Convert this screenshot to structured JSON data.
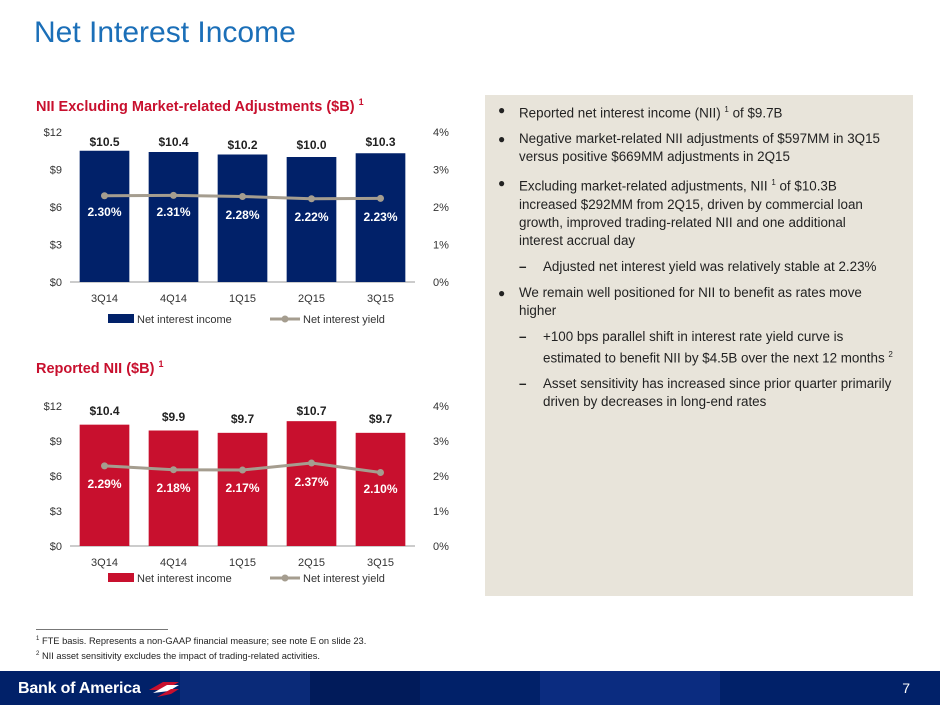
{
  "page": {
    "title": "Net Interest Income",
    "page_number": "7",
    "colors": {
      "title_blue": "#1b6fb8",
      "navy": "#012169",
      "red": "#c8102e",
      "yield_gray": "#a59d8f",
      "panel": "#e8e4da"
    }
  },
  "chart_data": [
    {
      "type": "bar",
      "title": "NII Excluding Market-related Adjustments ($B)",
      "title_sup": "1",
      "categories": [
        "3Q14",
        "4Q14",
        "1Q15",
        "2Q15",
        "3Q15"
      ],
      "series": [
        {
          "name": "Net interest income",
          "axis": "left",
          "color": "#012169",
          "values": [
            10.5,
            10.4,
            10.2,
            10.0,
            10.3
          ],
          "labels": [
            "$10.5",
            "$10.4",
            "$10.2",
            "$10.0",
            "$10.3"
          ]
        },
        {
          "name": "Net interest yield",
          "axis": "right",
          "type": "line",
          "color": "#a59d8f",
          "values": [
            2.3,
            2.31,
            2.28,
            2.22,
            2.23
          ],
          "labels": [
            "2.30%",
            "2.31%",
            "2.28%",
            "2.22%",
            "2.23%"
          ]
        }
      ],
      "ylim": [
        0,
        12
      ],
      "y_ticks": [
        "$0",
        "$3",
        "$6",
        "$9",
        "$12"
      ],
      "y2lim": [
        0,
        4
      ],
      "y2_ticks": [
        "0%",
        "1%",
        "2%",
        "3%",
        "4%"
      ],
      "legend": "bottom",
      "grid": false
    },
    {
      "type": "bar",
      "title": "Reported NII ($B)",
      "title_sup": "1",
      "categories": [
        "3Q14",
        "4Q14",
        "1Q15",
        "2Q15",
        "3Q15"
      ],
      "series": [
        {
          "name": "Net interest income",
          "axis": "left",
          "color": "#c8102e",
          "values": [
            10.4,
            9.9,
            9.7,
            10.7,
            9.7
          ],
          "labels": [
            "$10.4",
            "$9.9",
            "$9.7",
            "$10.7",
            "$9.7"
          ]
        },
        {
          "name": "Net interest yield",
          "axis": "right",
          "type": "line",
          "color": "#a59d8f",
          "values": [
            2.29,
            2.18,
            2.17,
            2.37,
            2.1
          ],
          "labels": [
            "2.29%",
            "2.18%",
            "2.17%",
            "2.37%",
            "2.10%"
          ]
        }
      ],
      "ylim": [
        0,
        12
      ],
      "y_ticks": [
        "$0",
        "$3",
        "$6",
        "$9",
        "$12"
      ],
      "y2lim": [
        0,
        4
      ],
      "y2_ticks": [
        "0%",
        "1%",
        "2%",
        "3%",
        "4%"
      ],
      "legend": "bottom",
      "grid": false
    }
  ],
  "bullets": [
    {
      "level": 1,
      "marker": "●",
      "parts": [
        "Reported net interest income (NII) ",
        "1",
        " of $9.7B"
      ]
    },
    {
      "level": 1,
      "marker": "●",
      "parts": [
        "Negative market-related NII adjustments of $597MM in 3Q15 versus positive $669MM adjustments in 2Q15"
      ]
    },
    {
      "level": 1,
      "marker": "●",
      "parts": [
        "Excluding market-related adjustments, NII ",
        "1",
        " of $10.3B increased $292MM from 2Q15, driven by commercial loan growth, improved trading-related NII and one additional interest accrual day"
      ]
    },
    {
      "level": 2,
      "marker": "–",
      "parts": [
        "Adjusted net interest yield was relatively stable at 2.23%"
      ]
    },
    {
      "level": 1,
      "marker": "●",
      "parts": [
        "We remain well positioned for NII to benefit as rates move higher"
      ]
    },
    {
      "level": 2,
      "marker": "–",
      "parts": [
        "+100 bps parallel shift in interest rate yield curve is estimated to benefit NII by $4.5B over the next 12 months ",
        "2"
      ]
    },
    {
      "level": 2,
      "marker": "–",
      "parts": [
        "Asset sensitivity has increased since prior quarter primarily driven by decreases in long-end rates"
      ]
    }
  ],
  "footnotes": [
    {
      "num": "1",
      "text": "FTE basis. Represents a non-GAAP financial measure; see note E on slide 23."
    },
    {
      "num": "2",
      "text": "NII asset sensitivity excludes the impact of trading-related activities."
    }
  ],
  "brand": {
    "logo_text": "Bank of America"
  }
}
